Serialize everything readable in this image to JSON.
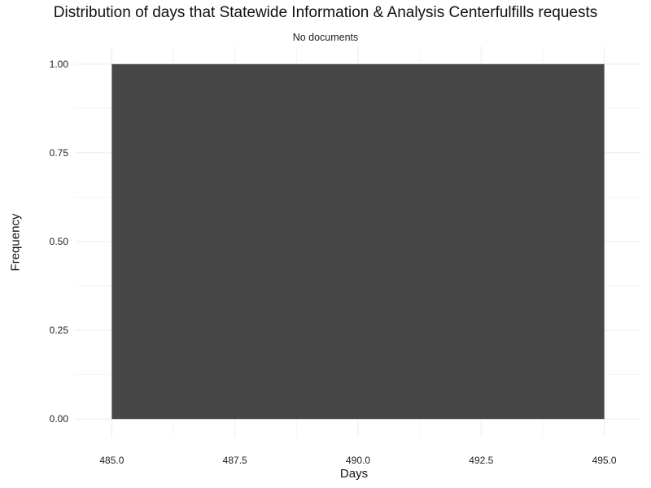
{
  "chart_data": {
    "type": "bar",
    "title": "Distribution of days that Statewide Information & Analysis Centerfulfills requests",
    "subtitle": "No documents",
    "xlabel": "Days",
    "ylabel": "Frequency",
    "xlim": [
      484.25,
      495.75
    ],
    "ylim": [
      -0.05,
      1.05
    ],
    "x_ticks": [
      485.0,
      487.5,
      490.0,
      492.5,
      495.0
    ],
    "x_tick_labels": [
      "485.0",
      "487.5",
      "490.0",
      "492.5",
      "495.0"
    ],
    "y_ticks": [
      0.0,
      0.25,
      0.5,
      0.75,
      1.0
    ],
    "y_tick_labels": [
      "0.00",
      "0.25",
      "0.50",
      "0.75",
      "1.00"
    ],
    "bars": [
      {
        "x_start": 485.0,
        "x_end": 495.0,
        "value": 1.0
      }
    ],
    "grid": true,
    "colors": {
      "bar": "#474747",
      "grid_major": "#ebebeb",
      "grid_minor": "#f4f4f4",
      "text": "#111111"
    }
  }
}
